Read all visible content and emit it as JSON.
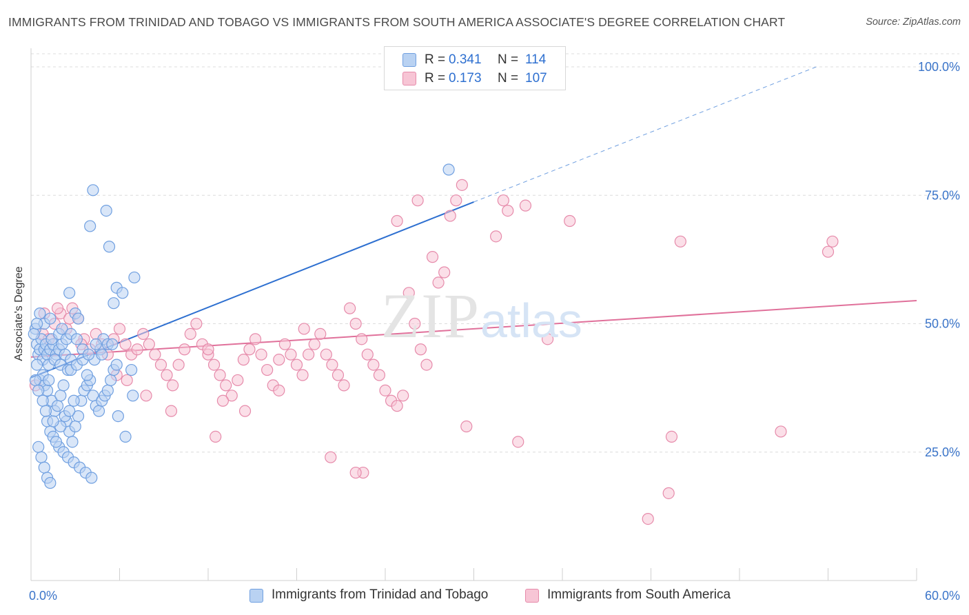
{
  "title": "IMMIGRANTS FROM TRINIDAD AND TOBAGO VS IMMIGRANTS FROM SOUTH AMERICA ASSOCIATE'S DEGREE CORRELATION CHART",
  "source": "Source: ZipAtlas.com",
  "watermark": {
    "zip": "ZIP",
    "atlas": "atlas"
  },
  "legend_top": [
    {
      "r_label": "R =",
      "r_value": "0.341",
      "n_label": "N =",
      "n_value": "114"
    },
    {
      "r_label": "R =",
      "r_value": "0.173",
      "n_label": "N =",
      "n_value": "107"
    }
  ],
  "chart_data": {
    "type": "scatter",
    "xlabel": "",
    "ylabel": "Associate's Degree",
    "xlim": [
      0,
      60
    ],
    "ylim": [
      0,
      105
    ],
    "x_tick_labels": [
      "0.0%",
      "60.0%"
    ],
    "y_ticks": [
      25,
      50,
      75,
      100
    ],
    "y_tick_labels": [
      "25.0%",
      "50.0%",
      "75.0%",
      "100.0%"
    ],
    "grid": "horizontal dashed",
    "legend_position": "top-center and bottom",
    "colors": {
      "blue": "#6f9fe0",
      "blue_fill": "#b9d2f2",
      "blue_line": "#2d6fd0",
      "pink": "#e68aaa",
      "pink_fill": "#f7c5d5",
      "pink_line": "#e0709a",
      "tick_label": "#3a74c9"
    },
    "series": [
      {
        "name": "Immigrants from Trinidad and Tobago",
        "color": "blue",
        "r": 0.341,
        "n": 114,
        "trend": {
          "x0": 0,
          "y0": 39.5,
          "x1": 30,
          "y1": 73.7,
          "dashed_to_x": 53.2,
          "dashed_to_y": 100
        },
        "points": [
          [
            0.4,
            46
          ],
          [
            0.5,
            44
          ],
          [
            0.6,
            45
          ],
          [
            0.3,
            49
          ],
          [
            0.7,
            47
          ],
          [
            0.8,
            43
          ],
          [
            0.9,
            45
          ],
          [
            1.0,
            46
          ],
          [
            1.1,
            44
          ],
          [
            1.2,
            42
          ],
          [
            0.4,
            42
          ],
          [
            0.6,
            39
          ],
          [
            0.9,
            38
          ],
          [
            1.1,
            37
          ],
          [
            0.8,
            40
          ],
          [
            1.3,
            45
          ],
          [
            1.5,
            46
          ],
          [
            1.7,
            44
          ],
          [
            1.9,
            45
          ],
          [
            2.1,
            46
          ],
          [
            1.4,
            47
          ],
          [
            1.6,
            43
          ],
          [
            2.0,
            42
          ],
          [
            2.3,
            44
          ],
          [
            2.5,
            41
          ],
          [
            2.7,
            43
          ],
          [
            1.2,
            39
          ],
          [
            1.4,
            35
          ],
          [
            1.6,
            33
          ],
          [
            1.8,
            34
          ],
          [
            2.0,
            36
          ],
          [
            2.2,
            38
          ],
          [
            2.4,
            31
          ],
          [
            2.6,
            29
          ],
          [
            2.8,
            27
          ],
          [
            3.0,
            30
          ],
          [
            3.2,
            32
          ],
          [
            3.4,
            35
          ],
          [
            3.6,
            37
          ],
          [
            3.8,
            38
          ],
          [
            4.0,
            39
          ],
          [
            4.2,
            36
          ],
          [
            4.4,
            34
          ],
          [
            4.6,
            33
          ],
          [
            4.8,
            35
          ],
          [
            5.0,
            36
          ],
          [
            5.2,
            37
          ],
          [
            5.4,
            39
          ],
          [
            5.6,
            41
          ],
          [
            5.8,
            42
          ],
          [
            1.1,
            31
          ],
          [
            1.3,
            29
          ],
          [
            1.5,
            28
          ],
          [
            1.9,
            26
          ],
          [
            2.2,
            25
          ],
          [
            2.5,
            24
          ],
          [
            2.9,
            23
          ],
          [
            3.3,
            22
          ],
          [
            3.7,
            21
          ],
          [
            4.1,
            20
          ],
          [
            0.5,
            26
          ],
          [
            0.7,
            24
          ],
          [
            0.9,
            22
          ],
          [
            1.1,
            20
          ],
          [
            1.3,
            19
          ],
          [
            1.7,
            27
          ],
          [
            2.0,
            30
          ],
          [
            2.3,
            32
          ],
          [
            2.6,
            33
          ],
          [
            2.9,
            35
          ],
          [
            2.6,
            56
          ],
          [
            3.0,
            52
          ],
          [
            3.2,
            51
          ],
          [
            4.0,
            69
          ],
          [
            4.2,
            76
          ],
          [
            5.1,
            72
          ],
          [
            5.3,
            65
          ],
          [
            5.6,
            54
          ],
          [
            5.8,
            57
          ],
          [
            6.2,
            56
          ],
          [
            6.4,
            28
          ],
          [
            6.8,
            41
          ],
          [
            6.9,
            36
          ],
          [
            7.0,
            59
          ],
          [
            1.9,
            48
          ],
          [
            2.1,
            49
          ],
          [
            2.4,
            47
          ],
          [
            2.7,
            48
          ],
          [
            3.1,
            47
          ],
          [
            3.5,
            45
          ],
          [
            4.7,
            45
          ],
          [
            4.9,
            47
          ],
          [
            5.2,
            46
          ],
          [
            0.6,
            52
          ],
          [
            0.9,
            50
          ],
          [
            1.3,
            51
          ],
          [
            3.8,
            40
          ],
          [
            4.3,
            43
          ],
          [
            4.8,
            44
          ],
          [
            5.5,
            46
          ],
          [
            0.3,
            39
          ],
          [
            0.5,
            37
          ],
          [
            0.8,
            35
          ],
          [
            1.0,
            33
          ],
          [
            1.5,
            31
          ],
          [
            2.7,
            41
          ],
          [
            3.1,
            42
          ],
          [
            3.5,
            43
          ],
          [
            3.9,
            44
          ],
          [
            4.4,
            46
          ],
          [
            28.3,
            80
          ],
          [
            0.2,
            48
          ],
          [
            0.4,
            50
          ],
          [
            5.9,
            32
          ]
        ]
      },
      {
        "name": "Immigrants from South America",
        "color": "pink",
        "r": 0.173,
        "n": 107,
        "trend": {
          "x0": 0,
          "y0": 43.5,
          "x1": 60,
          "y1": 54.5
        },
        "points": [
          [
            0.3,
            38
          ],
          [
            0.8,
            48
          ],
          [
            1.2,
            47
          ],
          [
            1.6,
            50
          ],
          [
            2.0,
            52
          ],
          [
            2.4,
            49
          ],
          [
            2.8,
            53
          ],
          [
            3.2,
            51
          ],
          [
            3.6,
            47
          ],
          [
            4.0,
            45
          ],
          [
            4.4,
            48
          ],
          [
            4.8,
            46
          ],
          [
            5.2,
            44
          ],
          [
            5.6,
            47
          ],
          [
            6.0,
            49
          ],
          [
            6.4,
            46
          ],
          [
            6.8,
            44
          ],
          [
            7.2,
            45
          ],
          [
            7.6,
            48
          ],
          [
            8.0,
            46
          ],
          [
            8.4,
            44
          ],
          [
            8.8,
            42
          ],
          [
            9.2,
            40
          ],
          [
            9.6,
            38
          ],
          [
            10.0,
            42
          ],
          [
            10.4,
            45
          ],
          [
            10.8,
            48
          ],
          [
            11.2,
            50
          ],
          [
            11.6,
            46
          ],
          [
            12.0,
            44
          ],
          [
            12.4,
            42
          ],
          [
            12.8,
            40
          ],
          [
            13.2,
            38
          ],
          [
            13.6,
            36
          ],
          [
            14.0,
            39
          ],
          [
            14.4,
            43
          ],
          [
            14.8,
            45
          ],
          [
            15.2,
            47
          ],
          [
            15.6,
            44
          ],
          [
            16.0,
            41
          ],
          [
            16.4,
            38
          ],
          [
            16.8,
            43
          ],
          [
            17.2,
            46
          ],
          [
            17.6,
            44
          ],
          [
            18.0,
            42
          ],
          [
            18.4,
            40
          ],
          [
            18.8,
            44
          ],
          [
            19.2,
            46
          ],
          [
            19.6,
            48
          ],
          [
            20.0,
            44
          ],
          [
            20.4,
            42
          ],
          [
            20.8,
            40
          ],
          [
            21.2,
            38
          ],
          [
            21.6,
            53
          ],
          [
            22.0,
            50
          ],
          [
            22.4,
            47
          ],
          [
            22.8,
            44
          ],
          [
            23.2,
            42
          ],
          [
            23.6,
            40
          ],
          [
            24.0,
            37
          ],
          [
            24.4,
            35
          ],
          [
            24.8,
            34
          ],
          [
            25.2,
            36
          ],
          [
            25.6,
            56
          ],
          [
            26.0,
            50
          ],
          [
            26.4,
            45
          ],
          [
            26.8,
            42
          ],
          [
            27.2,
            63
          ],
          [
            27.6,
            58
          ],
          [
            28.0,
            60
          ],
          [
            28.4,
            71
          ],
          [
            28.8,
            74
          ],
          [
            29.2,
            77
          ],
          [
            31.5,
            67
          ],
          [
            32.0,
            74
          ],
          [
            32.3,
            72
          ],
          [
            33.5,
            73
          ],
          [
            36.5,
            70
          ],
          [
            26.2,
            74
          ],
          [
            24.8,
            70
          ],
          [
            35.0,
            47
          ],
          [
            33.0,
            27
          ],
          [
            41.8,
            12
          ],
          [
            43.2,
            17
          ],
          [
            43.4,
            28
          ],
          [
            50.8,
            29
          ],
          [
            54.0,
            64
          ],
          [
            54.3,
            66
          ],
          [
            44.0,
            66
          ],
          [
            29.5,
            30
          ],
          [
            22.5,
            21
          ],
          [
            22.0,
            21
          ],
          [
            20.3,
            24
          ],
          [
            14.5,
            33
          ],
          [
            13.0,
            35
          ],
          [
            12.0,
            45
          ],
          [
            9.5,
            33
          ],
          [
            7.8,
            36
          ],
          [
            6.5,
            39
          ],
          [
            5.8,
            40
          ],
          [
            2.6,
            51
          ],
          [
            1.8,
            53
          ],
          [
            0.9,
            52
          ],
          [
            3.4,
            46
          ],
          [
            12.5,
            28
          ],
          [
            16.8,
            37
          ],
          [
            18.5,
            49
          ]
        ]
      }
    ]
  },
  "legend_bottom": [
    {
      "label": "Immigrants from Trinidad and Tobago",
      "color": "blue"
    },
    {
      "label": "Immigrants from South America",
      "color": "pink"
    }
  ]
}
